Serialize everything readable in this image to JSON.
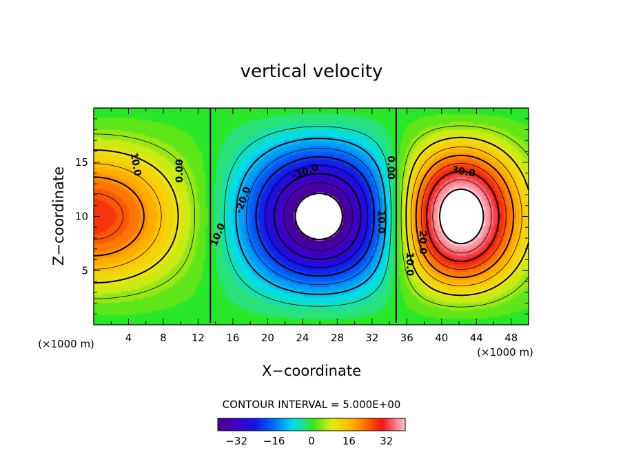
{
  "chart_data": {
    "type": "heatmap",
    "title": "vertical velocity",
    "xlabel": "X−coordinate",
    "ylabel": "Z−coordinate",
    "x_unit_left": "(×1000 m)",
    "x_unit_right": "(×1000 m)",
    "xlim": [
      0,
      50
    ],
    "ylim": [
      0,
      20
    ],
    "x_ticks": [
      {
        "value": 4,
        "label": "4"
      },
      {
        "value": 8,
        "label": "8"
      },
      {
        "value": 12,
        "label": "12"
      },
      {
        "value": 16,
        "label": "16"
      },
      {
        "value": 20,
        "label": "20"
      },
      {
        "value": 24,
        "label": "24"
      },
      {
        "value": 28,
        "label": "28"
      },
      {
        "value": 32,
        "label": "32"
      },
      {
        "value": 36,
        "label": "36"
      },
      {
        "value": 40,
        "label": "40"
      },
      {
        "value": 44,
        "label": "44"
      },
      {
        "value": 48,
        "label": "48"
      }
    ],
    "y_ticks": [
      {
        "value": 5,
        "label": "5"
      },
      {
        "value": 10,
        "label": "10"
      },
      {
        "value": 15,
        "label": "15"
      }
    ],
    "contour_interval": "CONTOUR INTERVAL = 5.000E+00",
    "contour_labels": [
      {
        "text": "10.0",
        "x": 4.8,
        "z": 14.8,
        "angle": 80
      },
      {
        "text": "0.00",
        "x": 9.9,
        "z": 14.2,
        "angle": -90
      },
      {
        "text": "-20.0",
        "x": 17.2,
        "z": 11.5,
        "angle": -70
      },
      {
        "text": "10.0",
        "x": 14.3,
        "z": 8.3,
        "angle": -68
      },
      {
        "text": "-30.0",
        "x": 24.3,
        "z": 14.1,
        "angle": -20
      },
      {
        "text": "10.0",
        "x": 33.0,
        "z": 9.5,
        "angle": 90
      },
      {
        "text": "0.00",
        "x": 34.1,
        "z": 14.5,
        "angle": 90
      },
      {
        "text": "30.0",
        "x": 42.5,
        "z": 14.1,
        "angle": 10
      },
      {
        "text": "20.0",
        "x": 37.8,
        "z": 7.6,
        "angle": 90
      },
      {
        "text": "10.0",
        "x": 36.3,
        "z": 5.6,
        "angle": 90
      }
    ],
    "field": {
      "description": "vertical velocity w(x,z)",
      "cells": [
        {
          "sign": 1,
          "x": 0.0,
          "z": 10.0,
          "sx": 9.0,
          "sz": 8.0,
          "amp": 28
        },
        {
          "sign": -1,
          "x": 26.0,
          "z": 10.0,
          "sx": 7.5,
          "sz": 8.0,
          "amp": 45
        },
        {
          "sign": 1,
          "x": 42.0,
          "z": 10.0,
          "sx": 6.0,
          "sz": 8.0,
          "amp": 48
        }
      ],
      "white_above": 40
    },
    "colorbar": {
      "min": -40,
      "max": 40,
      "ticks": [
        {
          "value": -32,
          "label": "−32"
        },
        {
          "value": -16,
          "label": "−16"
        },
        {
          "value": 0,
          "label": "0"
        },
        {
          "value": 16,
          "label": "16"
        },
        {
          "value": 32,
          "label": "32"
        }
      ]
    }
  }
}
